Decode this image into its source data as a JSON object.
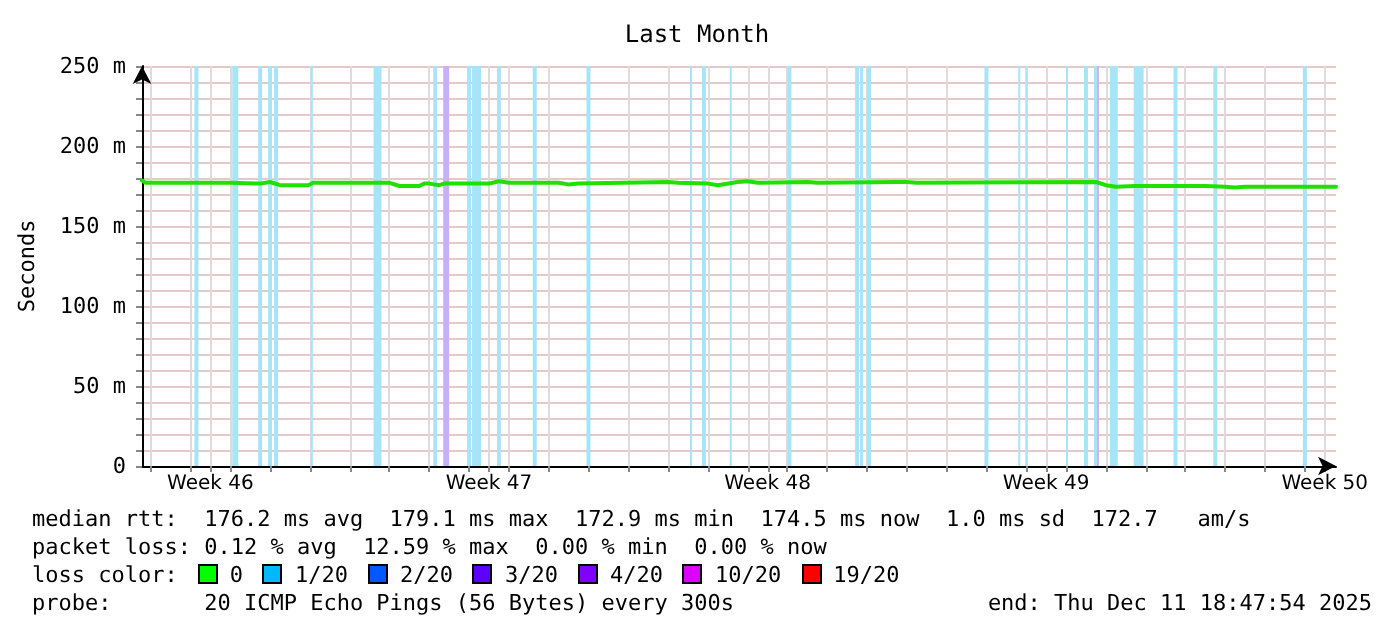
{
  "chart_data": {
    "type": "line",
    "title": "Last Month",
    "ylabel": "Seconds",
    "x": [
      "2025-11-11T18:47",
      "2025-11-11T21:00",
      "2025-11-14T00:00",
      "2025-11-14T18:00",
      "2025-11-15T00:00",
      "2025-11-15T06:00",
      "2025-11-15T23:00",
      "2025-11-16T02:00",
      "2025-11-17T18:00",
      "2025-11-18T00:00",
      "2025-11-18T06:00",
      "2025-11-18T18:00",
      "2025-11-18T21:00",
      "2025-11-19T00:00",
      "2025-11-19T06:00",
      "2025-11-19T09:00",
      "2025-11-20T00:00",
      "2025-11-20T12:00",
      "2025-11-20T18:00",
      "2025-11-21T00:00",
      "2025-11-22T06:00",
      "2025-11-22T12:00",
      "2025-11-22T18:00",
      "2025-11-25T00:00",
      "2025-11-25T06:00",
      "2025-11-26T00:00",
      "2025-11-26T06:00",
      "2025-11-26T18:00",
      "2025-11-27T00:00",
      "2025-11-27T06:00",
      "2025-11-28T12:00",
      "2025-11-28T18:00",
      "2025-11-30T18:00",
      "2025-12-01T00:00",
      "2025-12-01T06:00",
      "2025-12-05T18:00",
      "2025-12-06T00:00",
      "2025-12-06T06:00",
      "2025-12-06T18:00",
      "2025-12-08T12:00",
      "2025-12-09T00:00",
      "2025-12-09T06:00",
      "2025-12-09T12:00",
      "2025-12-11T18:47"
    ],
    "series": [
      {
        "color": "#20e000",
        "values": [
          178.5,
          177,
          177,
          176.5,
          177.5,
          175.5,
          175.5,
          177,
          177,
          177,
          175,
          175,
          176.5,
          176.5,
          175.5,
          176.5,
          176.5,
          176.5,
          178,
          177,
          177,
          176,
          176.5,
          177.5,
          177,
          176.5,
          175.5,
          177.5,
          178,
          177,
          177.5,
          177,
          177.5,
          177.5,
          177,
          177.5,
          175.5,
          174.5,
          175,
          175,
          174.5,
          174,
          174.5,
          174.5
        ]
      }
    ],
    "xlim": [
      "2025-11-11T18:47",
      "2025-12-11T18:47"
    ],
    "xticks": [
      {
        "value": "2025-11-12T00:00",
        "label": null
      },
      {
        "value": "2025-11-13T00:00",
        "label": null
      },
      {
        "value": "2025-11-13T12:00",
        "label": "Week 46"
      },
      {
        "value": "2025-11-14T00:00",
        "label": null
      },
      {
        "value": "2025-11-15T00:00",
        "label": null
      },
      {
        "value": "2025-11-16T00:00",
        "label": null
      },
      {
        "value": "2025-11-17T00:00",
        "label": null
      },
      {
        "value": "2025-11-18T00:00",
        "label": null
      },
      {
        "value": "2025-11-19T00:00",
        "label": null
      },
      {
        "value": "2025-11-20T00:00",
        "label": null
      },
      {
        "value": "2025-11-20T12:00",
        "label": "Week 47"
      },
      {
        "value": "2025-11-21T00:00",
        "label": null
      },
      {
        "value": "2025-11-22T00:00",
        "label": null
      },
      {
        "value": "2025-11-23T00:00",
        "label": null
      },
      {
        "value": "2025-11-24T00:00",
        "label": null
      },
      {
        "value": "2025-11-25T00:00",
        "label": null
      },
      {
        "value": "2025-11-26T00:00",
        "label": null
      },
      {
        "value": "2025-11-27T00:00",
        "label": null
      },
      {
        "value": "2025-11-27T12:00",
        "label": "Week 48"
      },
      {
        "value": "2025-11-28T00:00",
        "label": null
      },
      {
        "value": "2025-11-29T00:00",
        "label": null
      },
      {
        "value": "2025-11-30T00:00",
        "label": null
      },
      {
        "value": "2025-12-01T00:00",
        "label": null
      },
      {
        "value": "2025-12-02T00:00",
        "label": null
      },
      {
        "value": "2025-12-03T00:00",
        "label": null
      },
      {
        "value": "2025-12-04T00:00",
        "label": null
      },
      {
        "value": "2025-12-04T12:00",
        "label": "Week 49"
      },
      {
        "value": "2025-12-05T00:00",
        "label": null
      },
      {
        "value": "2025-12-06T00:00",
        "label": null
      },
      {
        "value": "2025-12-07T00:00",
        "label": null
      },
      {
        "value": "2025-12-08T00:00",
        "label": null
      },
      {
        "value": "2025-12-09T00:00",
        "label": null
      },
      {
        "value": "2025-12-10T00:00",
        "label": null
      },
      {
        "value": "2025-12-11T00:00",
        "label": null
      },
      {
        "value": "2025-12-11T12:00",
        "label": "Week 50"
      }
    ],
    "ylim": [
      0,
      250
    ],
    "yticks": [
      0,
      {
        "value": 10,
        "label": null
      },
      {
        "value": 20,
        "label": null
      },
      {
        "value": 30,
        "label": null
      },
      {
        "value": 40,
        "label": null
      },
      {
        "value": 50,
        "label": "50 m"
      },
      {
        "value": 60,
        "label": null
      },
      {
        "value": 70,
        "label": null
      },
      {
        "value": 80,
        "label": null
      },
      {
        "value": 90,
        "label": null
      },
      {
        "value": 100,
        "label": "100 m"
      },
      {
        "value": 110,
        "label": null
      },
      {
        "value": 120,
        "label": null
      },
      {
        "value": 130,
        "label": null
      },
      {
        "value": 140,
        "label": null
      },
      {
        "value": 150,
        "label": "150 m"
      },
      {
        "value": 160,
        "label": null
      },
      {
        "value": 170,
        "label": null
      },
      {
        "value": 180,
        "label": null
      },
      {
        "value": 190,
        "label": null
      },
      {
        "value": 200,
        "label": "200 m"
      },
      {
        "value": 210,
        "label": null
      },
      {
        "value": 220,
        "label": null
      },
      {
        "value": 230,
        "label": null
      },
      {
        "value": 240,
        "label": null
      },
      {
        "value": 250,
        "label": "250 m"
      }
    ],
    "grid": true,
    "marker": "none",
    "line_style": "solid",
    "bands": [
      {
        "axis": "x",
        "from": "2025-11-13T02:24",
        "to": "2025-11-13T04:48",
        "color": "#a8e4f8"
      },
      {
        "axis": "x",
        "from": "2025-11-14T01:12",
        "to": "2025-11-14T04:48",
        "color": "#a8e4f8"
      },
      {
        "axis": "x",
        "from": "2025-11-14T16:48",
        "to": "2025-11-14T19:12",
        "color": "#a8e4f8"
      },
      {
        "axis": "x",
        "from": "2025-11-14T22:48",
        "to": "2025-11-15T01:12",
        "color": "#a8e4f8"
      },
      {
        "axis": "x",
        "from": "2025-11-15T02:24",
        "to": "2025-11-15T04:48",
        "color": "#a8e4f8"
      },
      {
        "axis": "x",
        "from": "2025-11-16T00:36",
        "to": "2025-11-16T01:48",
        "color": "#a8e4f8"
      },
      {
        "axis": "x",
        "from": "2025-11-17T14:24",
        "to": "2025-11-17T19:12",
        "color": "#a8e4f8"
      },
      {
        "axis": "x",
        "from": "2025-11-19T02:24",
        "to": "2025-11-19T04:48",
        "color": "#a8e4f8"
      },
      {
        "axis": "x",
        "from": "2025-11-19T08:24",
        "to": "2025-11-19T12:00",
        "color": "#c8b0f8"
      },
      {
        "axis": "x",
        "from": "2025-11-19T22:48",
        "to": "2025-11-20T01:12",
        "color": "#a8e4f8"
      },
      {
        "axis": "x",
        "from": "2025-11-20T01:48",
        "to": "2025-11-20T07:12",
        "color": "#a8e4f8"
      },
      {
        "axis": "x",
        "from": "2025-11-20T16:48",
        "to": "2025-11-20T19:12",
        "color": "#a8e4f8"
      },
      {
        "axis": "x",
        "from": "2025-11-21T14:24",
        "to": "2025-11-21T16:48",
        "color": "#a8e4f8"
      },
      {
        "axis": "x",
        "from": "2025-11-22T22:48",
        "to": "2025-11-23T01:12",
        "color": "#a8e4f8"
      },
      {
        "axis": "x",
        "from": "2025-11-25T13:12",
        "to": "2025-11-25T14:24",
        "color": "#a8e4f8"
      },
      {
        "axis": "x",
        "from": "2025-11-25T20:24",
        "to": "2025-11-25T22:48",
        "color": "#a8e4f8"
      },
      {
        "axis": "x",
        "from": "2025-11-26T13:12",
        "to": "2025-11-26T14:24",
        "color": "#a8e4f8"
      },
      {
        "axis": "x",
        "from": "2025-11-28T00:00",
        "to": "2025-11-28T02:24",
        "color": "#a8e4f8"
      },
      {
        "axis": "x",
        "from": "2025-11-29T16:48",
        "to": "2025-11-29T19:12",
        "color": "#a8e4f8"
      },
      {
        "axis": "x",
        "from": "2025-11-29T19:48",
        "to": "2025-11-29T21:36",
        "color": "#a8e4f8"
      },
      {
        "axis": "x",
        "from": "2025-11-30T00:00",
        "to": "2025-11-30T02:24",
        "color": "#a8e4f8"
      },
      {
        "axis": "x",
        "from": "2025-12-02T22:48",
        "to": "2025-12-03T01:12",
        "color": "#a8e4f8"
      },
      {
        "axis": "x",
        "from": "2025-12-03T19:12",
        "to": "2025-12-03T20:24",
        "color": "#a8e4f8"
      },
      {
        "axis": "x",
        "from": "2025-12-03T23:24",
        "to": "2025-12-04T00:36",
        "color": "#a8e4f8"
      },
      {
        "axis": "x",
        "from": "2025-12-05T00:00",
        "to": "2025-12-05T01:12",
        "color": "#a8e4f8"
      },
      {
        "axis": "x",
        "from": "2025-12-05T10:48",
        "to": "2025-12-05T13:12",
        "color": "#a8e4f8"
      },
      {
        "axis": "x",
        "from": "2025-12-05T16:48",
        "to": "2025-12-05T18:36",
        "color": "#a8e4f8"
      },
      {
        "axis": "x",
        "from": "2025-12-05T18:36",
        "to": "2025-12-05T19:48",
        "color": "#c8b0f8"
      },
      {
        "axis": "x",
        "from": "2025-12-06T02:24",
        "to": "2025-12-06T07:12",
        "color": "#a8e4f8"
      },
      {
        "axis": "x",
        "from": "2025-12-06T16:48",
        "to": "2025-12-06T22:48",
        "color": "#a8e4f8"
      },
      {
        "axis": "x",
        "from": "2025-12-07T16:48",
        "to": "2025-12-07T19:12",
        "color": "#a8e4f8"
      },
      {
        "axis": "x",
        "from": "2025-12-08T16:48",
        "to": "2025-12-08T19:12",
        "color": "#a8e4f8"
      },
      {
        "axis": "x",
        "from": "2025-12-10T22:48",
        "to": "2025-12-11T01:12",
        "color": "#a8e4f8"
      }
    ],
    "annotations": [
      "median rtt:  176.2 ms avg  179.1 ms max  172.9 ms min  174.5 ms now  1.0 ms sd  172.7   am/s",
      "packet loss: 0.12 % avg  12.59 % max  0.00 % min  0.00 % now",
      "loss color:",
      "0",
      "1/20",
      "2/20",
      "3/20",
      "4/20",
      "10/20",
      "19/20",
      "probe:       20 ICMP Echo Pings (56 Bytes) every 300s",
      "end: Thu Dec 11 18:47:54 2025"
    ]
  }
}
